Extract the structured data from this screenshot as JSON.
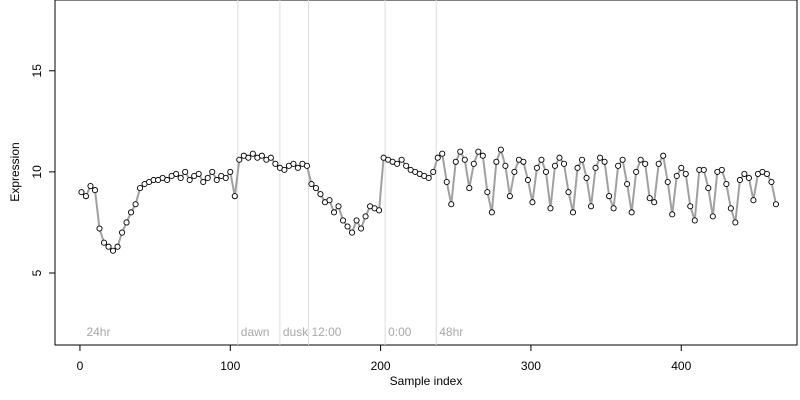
{
  "chart_data": {
    "type": "scatter",
    "x_label": "Sample index",
    "y_label": "Expression",
    "xlim": [
      -16.6,
      477
    ],
    "ylim": [
      1.44,
      18.5
    ],
    "xticks": [
      0,
      100,
      200,
      300,
      400
    ],
    "yticks": [
      5,
      10,
      15
    ],
    "line_color": "#a0a0a0",
    "point_color": "#ffffff",
    "event_color": "#dcdcdc",
    "events": [
      {
        "x": 105,
        "label": "dawn"
      },
      {
        "x": 133,
        "label": "dusk"
      },
      {
        "x": 152,
        "label": "12:00"
      },
      {
        "x": 203,
        "label": "0:00"
      },
      {
        "x": 237,
        "label": "48hr"
      }
    ],
    "annotations": [
      {
        "x": 3,
        "label": "24hr"
      }
    ],
    "x": [
      1,
      4,
      7,
      10,
      13,
      16,
      19,
      22,
      25,
      28,
      31,
      34,
      37,
      40,
      43,
      46,
      49,
      52,
      55,
      58,
      61,
      64,
      67,
      70,
      73,
      76,
      79,
      82,
      85,
      88,
      91,
      94,
      97,
      100,
      103,
      106,
      109,
      112,
      115,
      118,
      121,
      124,
      127,
      130,
      133,
      136,
      139,
      142,
      145,
      148,
      151,
      154,
      157,
      160,
      163,
      166,
      169,
      172,
      175,
      178,
      181,
      184,
      187,
      190,
      193,
      196,
      199,
      202,
      205,
      208,
      211,
      214,
      217,
      220,
      223,
      226,
      229,
      232,
      235,
      238,
      241,
      244,
      247,
      250,
      253,
      256,
      259,
      262,
      265,
      268,
      271,
      274,
      277,
      280,
      283,
      286,
      289,
      292,
      295,
      298,
      301,
      304,
      307,
      310,
      313,
      316,
      319,
      322,
      325,
      328,
      331,
      334,
      337,
      340,
      343,
      346,
      349,
      352,
      355,
      358,
      361,
      364,
      367,
      370,
      373,
      376,
      379,
      382,
      385,
      388,
      391,
      394,
      397,
      400,
      403,
      406,
      409,
      412,
      415,
      418,
      421,
      424,
      427,
      430,
      433,
      436,
      439,
      442,
      445,
      448,
      451,
      454,
      457,
      460,
      463
    ],
    "values": [
      9.0,
      8.8,
      9.3,
      9.1,
      7.2,
      6.5,
      6.3,
      6.1,
      6.3,
      7.0,
      7.5,
      8.0,
      8.4,
      9.2,
      9.4,
      9.5,
      9.6,
      9.6,
      9.7,
      9.6,
      9.8,
      9.9,
      9.7,
      10.0,
      9.6,
      9.8,
      9.9,
      9.5,
      9.7,
      10.0,
      9.6,
      9.8,
      9.7,
      10.0,
      8.8,
      10.6,
      10.8,
      10.7,
      10.9,
      10.7,
      10.8,
      10.6,
      10.7,
      10.4,
      10.2,
      10.1,
      10.3,
      10.4,
      10.2,
      10.4,
      10.3,
      9.4,
      9.2,
      8.9,
      8.5,
      8.6,
      8.0,
      8.3,
      7.6,
      7.3,
      7.0,
      7.6,
      7.2,
      7.8,
      8.3,
      8.2,
      8.1,
      10.7,
      10.6,
      10.5,
      10.4,
      10.6,
      10.3,
      10.1,
      10.0,
      9.9,
      9.8,
      9.7,
      10.0,
      10.7,
      10.9,
      9.5,
      8.4,
      10.5,
      11.0,
      10.6,
      9.2,
      10.4,
      11.0,
      10.8,
      9.0,
      8.0,
      10.5,
      11.1,
      10.3,
      8.8,
      10.0,
      10.6,
      10.5,
      9.6,
      8.5,
      10.2,
      10.6,
      10.0,
      8.2,
      10.3,
      10.7,
      10.4,
      9.0,
      8.0,
      10.2,
      10.6,
      9.7,
      8.3,
      10.2,
      10.7,
      10.5,
      8.8,
      8.2,
      10.3,
      10.6,
      9.4,
      8.0,
      10.0,
      10.6,
      10.4,
      8.7,
      8.5,
      10.4,
      10.8,
      9.5,
      7.9,
      9.8,
      10.2,
      9.9,
      8.3,
      7.6,
      10.1,
      10.1,
      9.2,
      7.8,
      10.0,
      10.1,
      9.4,
      8.2,
      7.5,
      9.6,
      9.9,
      9.7,
      8.6,
      9.9,
      10.0,
      9.9,
      9.5,
      8.4
    ]
  }
}
